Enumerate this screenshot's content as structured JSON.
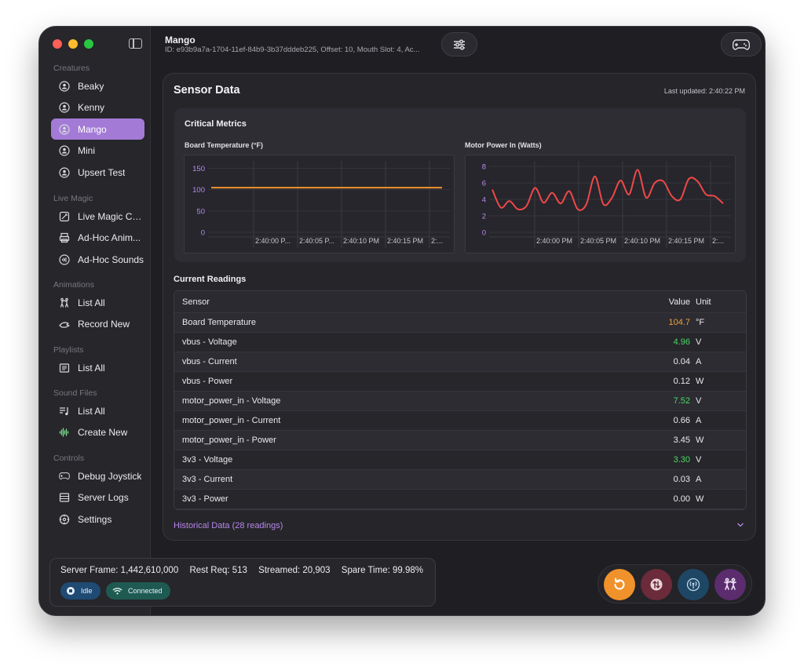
{
  "sidebar": {
    "sections": [
      {
        "label": "Creatures",
        "items": [
          {
            "label": "Beaky",
            "icon": "creature-icon"
          },
          {
            "label": "Kenny",
            "icon": "creature-icon"
          },
          {
            "label": "Mango",
            "icon": "creature-icon",
            "active": true
          },
          {
            "label": "Mini",
            "icon": "creature-icon"
          },
          {
            "label": "Upsert Test",
            "icon": "creature-icon"
          }
        ]
      },
      {
        "label": "Live Magic",
        "items": [
          {
            "label": "Live Magic Co...",
            "icon": "magic-icon"
          },
          {
            "label": "Ad-Hoc Anim...",
            "icon": "printer-icon"
          },
          {
            "label": "Ad-Hoc Sounds",
            "icon": "sound-icon"
          }
        ]
      },
      {
        "label": "Animations",
        "items": [
          {
            "label": "List All",
            "icon": "dance-icon"
          },
          {
            "label": "Record New",
            "icon": "record-hands-icon"
          }
        ]
      },
      {
        "label": "Playlists",
        "items": [
          {
            "label": "List All",
            "icon": "playlist-icon"
          }
        ]
      },
      {
        "label": "Sound Files",
        "items": [
          {
            "label": "List All",
            "icon": "music-list-icon"
          },
          {
            "label": "Create New",
            "icon": "waveform-icon"
          }
        ]
      },
      {
        "label": "Controls",
        "items": [
          {
            "label": "Debug Joystick",
            "icon": "gamepad-icon"
          },
          {
            "label": "Server Logs",
            "icon": "logs-icon"
          },
          {
            "label": "Settings",
            "icon": "gear-icon"
          }
        ]
      }
    ]
  },
  "header": {
    "title": "Mango",
    "subtitle": "ID: e93b9a7a-1704-11ef-84b9-3b37dddeb225, Offset: 10, Mouth Slot: 4, Ac..."
  },
  "panel": {
    "title": "Sensor Data",
    "last_updated": "Last updated: 2:40:22 PM",
    "metrics_title": "Critical Metrics",
    "readings_title": "Current Readings",
    "historical": "Historical Data (28 readings)"
  },
  "table": {
    "headers": {
      "sensor": "Sensor",
      "value": "Value",
      "unit": "Unit"
    },
    "rows": [
      {
        "sensor": "Board Temperature",
        "value": "104.7",
        "unit": "°F",
        "color": "#f0a23a"
      },
      {
        "sensor": "vbus - Voltage",
        "value": "4.96",
        "unit": "V",
        "color": "#4cd964"
      },
      {
        "sensor": "vbus - Current",
        "value": "0.04",
        "unit": "A",
        "color": "#e9e9ee"
      },
      {
        "sensor": "vbus - Power",
        "value": "0.12",
        "unit": "W",
        "color": "#e9e9ee"
      },
      {
        "sensor": "motor_power_in - Voltage",
        "value": "7.52",
        "unit": "V",
        "color": "#4cd964"
      },
      {
        "sensor": "motor_power_in - Current",
        "value": "0.66",
        "unit": "A",
        "color": "#e9e9ee"
      },
      {
        "sensor": "motor_power_in - Power",
        "value": "3.45",
        "unit": "W",
        "color": "#e9e9ee"
      },
      {
        "sensor": "3v3 - Voltage",
        "value": "3.30",
        "unit": "V",
        "color": "#4cd964"
      },
      {
        "sensor": "3v3 - Current",
        "value": "0.03",
        "unit": "A",
        "color": "#e9e9ee"
      },
      {
        "sensor": "3v3 - Power",
        "value": "0.00",
        "unit": "W",
        "color": "#e9e9ee"
      }
    ]
  },
  "status": {
    "server_frame": "Server Frame: 1,442,610,000",
    "rest_req": "Rest Req: 513",
    "streamed": "Streamed: 20,903",
    "spare_time": "Spare Time: 99.98%",
    "idle_badge": "Idle",
    "connected_badge": "Connected"
  },
  "actions": [
    {
      "name": "reset-button",
      "icon": "refresh-icon",
      "color": "#f0922b"
    },
    {
      "name": "sync-button",
      "icon": "arrows-swap-icon",
      "color": "#6b2b3a"
    },
    {
      "name": "broadcast-button",
      "icon": "antenna-icon",
      "color": "#1e4766"
    },
    {
      "name": "animate-button",
      "icon": "dance-icon",
      "color": "#5b2c6e"
    }
  ],
  "chart_data": [
    {
      "type": "line",
      "title": "Board Temperature (°F)",
      "x_tick_labels": [
        "2:40:00 P...",
        "2:40:05 P...",
        "2:40:10 PM",
        "2:40:15 PM",
        "2:..."
      ],
      "y_ticks": [
        0,
        50,
        100,
        150
      ],
      "ylim": [
        0,
        160
      ],
      "series": [
        {
          "color": "#f0922b",
          "values": [
            104.6,
            104.7,
            104.6,
            104.7,
            104.7,
            104.6,
            104.7,
            104.7,
            104.7,
            104.6,
            104.7,
            104.7,
            104.7,
            104.6,
            104.7,
            104.7,
            104.7,
            104.6,
            104.7,
            104.7,
            104.7,
            104.6,
            104.7,
            104.7,
            104.7,
            104.7,
            104.7,
            104.7
          ]
        }
      ]
    },
    {
      "type": "line",
      "title": "Motor Power In (Watts)",
      "x_tick_labels": [
        "2:40:00 PM",
        "2:40:05 PM",
        "2:40:10 PM",
        "2:40:15 PM",
        "2:..."
      ],
      "y_ticks": [
        0,
        2,
        4,
        6,
        8
      ],
      "ylim": [
        0,
        8.3
      ],
      "series": [
        {
          "color": "#f04848",
          "values": [
            5.2,
            3.0,
            3.8,
            2.8,
            3.2,
            5.4,
            3.6,
            4.8,
            3.5,
            5.0,
            2.8,
            3.4,
            6.8,
            3.4,
            4.2,
            6.3,
            4.6,
            7.6,
            4.2,
            6.0,
            6.2,
            4.4,
            4.0,
            6.5,
            6.2,
            4.6,
            4.4,
            3.5
          ]
        }
      ]
    }
  ]
}
